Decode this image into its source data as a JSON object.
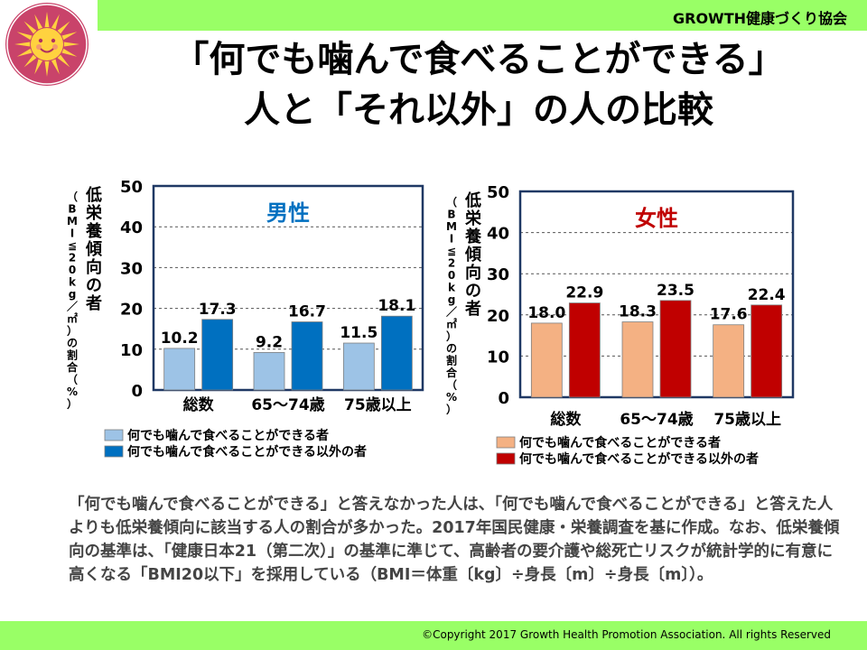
{
  "header": {
    "org_name": "GROWTH健康づくり協会"
  },
  "title": {
    "line1": "「何でも噛んで食べることができる」",
    "line2": "人と「それ以外」の人の比較"
  },
  "description": "「何でも噛んで食べることができる」と答えなかった人は、「何でも噛んで食べることができる」と答えた人よりも低栄養傾向に該当する人の割合が多かった。2017年国民健康・栄養調査を基に作成。なお、低栄養傾向の基準は、「健康日本21（第二次）」の基準に準じて、高齢者の要介護や総死亡リスクが統計学的に有意に高くなる「BMI20以下」を採用している（BMI＝体重〔kg〕÷身長〔m〕÷身長〔m〕）。",
  "footer": {
    "copyright": "©Copyright 2017 Growth Health Promotion Association. All rights Reserved"
  },
  "chart_data": [
    {
      "type": "bar",
      "title": "男性",
      "title_color": "#0070c0",
      "ylabel_main": "低栄養傾向の者",
      "ylabel_sub": "（BMI≦20kg／㎡）の割合（%）",
      "ylim": [
        0,
        50
      ],
      "yticks": [
        0,
        10,
        20,
        30,
        40,
        50
      ],
      "grid": true,
      "categories": [
        "総数",
        "65〜74歳",
        "75歳以上"
      ],
      "series": [
        {
          "name": "何でも噛んで食べることができる者",
          "color": "#9dc3e6",
          "values": [
            10.2,
            9.2,
            11.5
          ]
        },
        {
          "name": "何でも噛んで食べることができる以外の者",
          "color": "#0070c0",
          "values": [
            17.3,
            16.7,
            18.1
          ]
        }
      ],
      "legend_position": "bottom"
    },
    {
      "type": "bar",
      "title": "女性",
      "title_color": "#c00000",
      "ylabel_main": "低栄養傾向の者",
      "ylabel_sub": "（BMI≦20kg／㎡）の割合（%）",
      "ylim": [
        0,
        50
      ],
      "yticks": [
        0,
        10,
        20,
        30,
        40,
        50
      ],
      "grid": true,
      "categories": [
        "総数",
        "65〜74歳",
        "75歳以上"
      ],
      "series": [
        {
          "name": "何でも噛んで食べることができる者",
          "color": "#f4b183",
          "values": [
            18.0,
            18.3,
            17.6
          ]
        },
        {
          "name": "何でも噛んで食べることができる以外の者",
          "color": "#c00000",
          "values": [
            22.9,
            23.5,
            22.4
          ]
        }
      ],
      "legend_position": "bottom"
    }
  ]
}
